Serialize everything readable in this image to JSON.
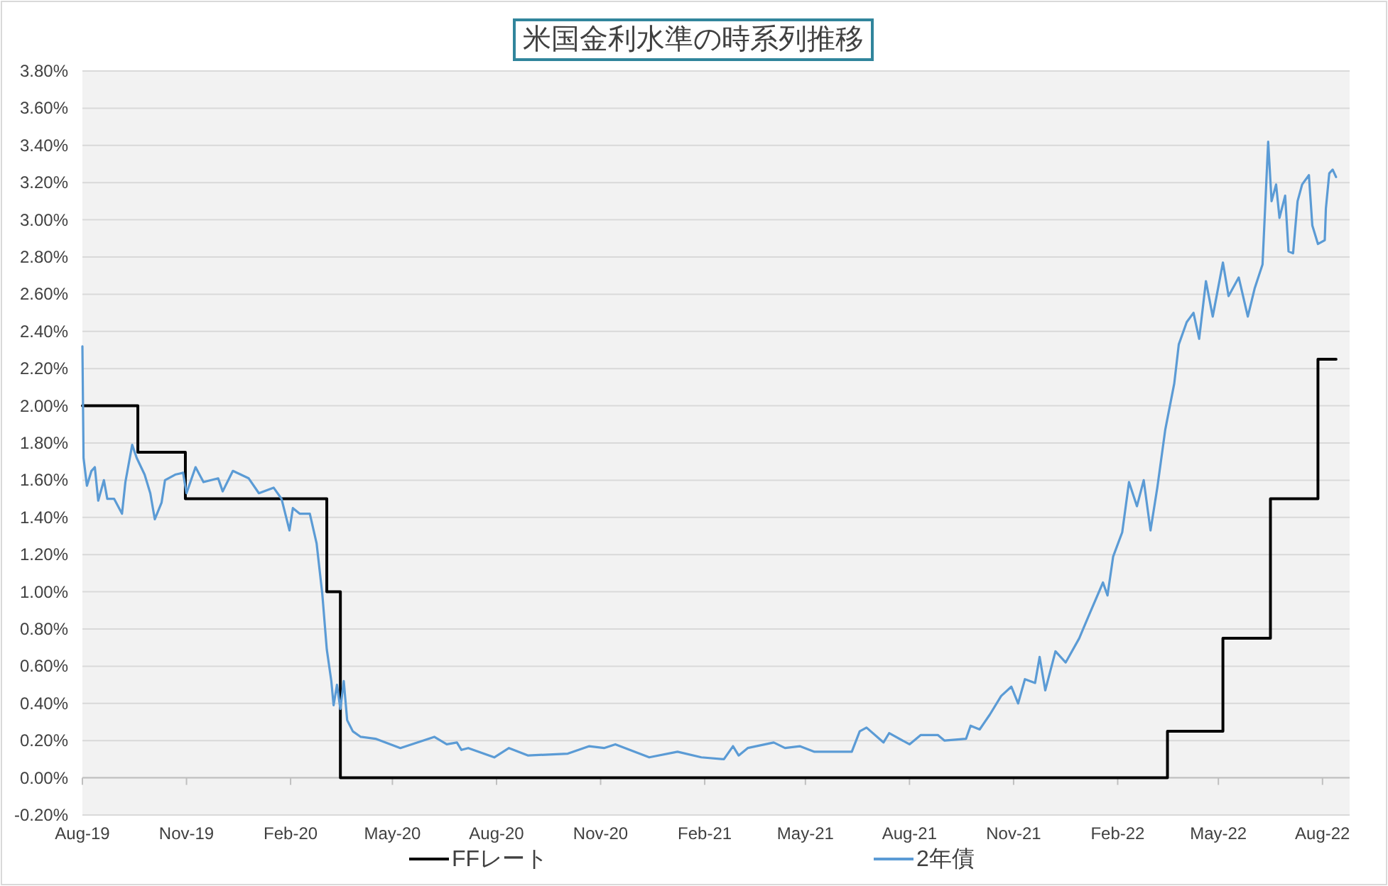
{
  "chart_data": {
    "type": "line",
    "title": "米国金利水準の時系列推移",
    "xlim": [
      "2019-08-01",
      "2022-08-25"
    ],
    "ylim": [
      -0.2,
      3.8
    ],
    "xticks": [
      {
        "value": "2019-08-01",
        "label": "Aug-19"
      },
      {
        "value": "2019-11-01",
        "label": "Nov-19"
      },
      {
        "value": "2020-02-01",
        "label": "Feb-20"
      },
      {
        "value": "2020-05-01",
        "label": "May-20"
      },
      {
        "value": "2020-08-01",
        "label": "Aug-20"
      },
      {
        "value": "2020-11-01",
        "label": "Nov-20"
      },
      {
        "value": "2021-02-01",
        "label": "Feb-21"
      },
      {
        "value": "2021-05-01",
        "label": "May-21"
      },
      {
        "value": "2021-08-01",
        "label": "Aug-21"
      },
      {
        "value": "2021-11-01",
        "label": "Nov-21"
      },
      {
        "value": "2022-02-01",
        "label": "Feb-22"
      },
      {
        "value": "2022-05-01",
        "label": "May-22"
      },
      {
        "value": "2022-08-01",
        "label": "Aug-22"
      }
    ],
    "yticks": [
      {
        "value": -0.2,
        "label": "-0.20%"
      },
      {
        "value": 0,
        "label": "0.00%"
      },
      {
        "value": 0.2,
        "label": "0.20%"
      },
      {
        "value": 0.4,
        "label": "0.40%"
      },
      {
        "value": 0.6,
        "label": "0.60%"
      },
      {
        "value": 0.8,
        "label": "0.80%"
      },
      {
        "value": 1.0,
        "label": "1.00%"
      },
      {
        "value": 1.2,
        "label": "1.20%"
      },
      {
        "value": 1.4,
        "label": "1.40%"
      },
      {
        "value": 1.6,
        "label": "1.60%"
      },
      {
        "value": 1.8,
        "label": "1.80%"
      },
      {
        "value": 2.0,
        "label": "2.00%"
      },
      {
        "value": 2.2,
        "label": "2.20%"
      },
      {
        "value": 2.4,
        "label": "2.40%"
      },
      {
        "value": 2.6,
        "label": "2.60%"
      },
      {
        "value": 2.8,
        "label": "2.80%"
      },
      {
        "value": 3.0,
        "label": "3.00%"
      },
      {
        "value": 3.2,
        "label": "3.20%"
      },
      {
        "value": 3.4,
        "label": "3.40%"
      },
      {
        "value": 3.6,
        "label": "3.60%"
      },
      {
        "value": 3.8,
        "label": "3.80%"
      }
    ],
    "grid": "y",
    "legend": "bottom",
    "series": [
      {
        "name": "FFレート",
        "type": "step",
        "color": "#000000",
        "x": [
          "2019-08-01",
          "2019-09-19",
          "2019-10-31",
          "2020-03-04",
          "2020-03-16",
          "2022-03-17",
          "2022-05-05",
          "2022-06-16",
          "2022-07-28",
          "2022-08-13"
        ],
        "values": [
          2.0,
          1.75,
          1.5,
          1.0,
          0.0,
          0.25,
          0.75,
          1.5,
          2.25,
          2.25
        ]
      },
      {
        "name": "2年債",
        "type": "line",
        "color": "#5b9bd5",
        "x": [
          "2019-08-01",
          "2019-08-02",
          "2019-08-05",
          "2019-08-09",
          "2019-08-12",
          "2019-08-15",
          "2019-08-20",
          "2019-08-23",
          "2019-08-29",
          "2019-09-05",
          "2019-09-08",
          "2019-09-14",
          "2019-09-18",
          "2019-09-25",
          "2019-09-30",
          "2019-10-04",
          "2019-10-10",
          "2019-10-13",
          "2019-10-22",
          "2019-10-29",
          "2019-11-01",
          "2019-11-09",
          "2019-11-16",
          "2019-11-29",
          "2019-12-03",
          "2019-12-12",
          "2019-12-26",
          "2020-01-04",
          "2020-01-17",
          "2020-01-24",
          "2020-01-31",
          "2020-02-03",
          "2020-02-09",
          "2020-02-18",
          "2020-02-24",
          "2020-02-29",
          "2020-03-04",
          "2020-03-08",
          "2020-03-10",
          "2020-03-13",
          "2020-03-16",
          "2020-03-19",
          "2020-03-22",
          "2020-03-27",
          "2020-04-03",
          "2020-04-16",
          "2020-05-08",
          "2020-06-07",
          "2020-06-18",
          "2020-06-27",
          "2020-07-01",
          "2020-07-07",
          "2020-07-30",
          "2020-08-12",
          "2020-08-29",
          "2020-10-03",
          "2020-10-22",
          "2020-11-04",
          "2020-11-14",
          "2020-12-14",
          "2021-01-08",
          "2021-01-29",
          "2021-02-18",
          "2021-02-26",
          "2021-03-03",
          "2021-03-11",
          "2021-04-03",
          "2021-04-13",
          "2021-04-26",
          "2021-05-09",
          "2021-06-11",
          "2021-06-18",
          "2021-06-24",
          "2021-07-09",
          "2021-07-14",
          "2021-08-01",
          "2021-08-11",
          "2021-08-26",
          "2021-09-01",
          "2021-09-20",
          "2021-09-24",
          "2021-10-02",
          "2021-10-11",
          "2021-10-21",
          "2021-10-30",
          "2021-11-05",
          "2021-11-11",
          "2021-11-20",
          "2021-11-24",
          "2021-11-29",
          "2021-12-08",
          "2021-12-17",
          "2021-12-29",
          "2022-01-07",
          "2022-01-19",
          "2022-01-23",
          "2022-01-28",
          "2022-02-05",
          "2022-02-11",
          "2022-02-18",
          "2022-02-24",
          "2022-03-02",
          "2022-03-08",
          "2022-03-15",
          "2022-03-23",
          "2022-03-27",
          "2022-04-03",
          "2022-04-09",
          "2022-04-14",
          "2022-04-20",
          "2022-04-26",
          "2022-05-05",
          "2022-05-10",
          "2022-05-19",
          "2022-05-27",
          "2022-06-02",
          "2022-06-09",
          "2022-06-14",
          "2022-06-17",
          "2022-06-21",
          "2022-06-24",
          "2022-06-29",
          "2022-07-02",
          "2022-07-06",
          "2022-07-10",
          "2022-07-14",
          "2022-07-20",
          "2022-07-23",
          "2022-07-28",
          "2022-08-03",
          "2022-08-04",
          "2022-08-07",
          "2022-08-10",
          "2022-08-13"
        ],
        "values": [
          2.32,
          1.72,
          1.57,
          1.65,
          1.67,
          1.49,
          1.6,
          1.5,
          1.5,
          1.42,
          1.59,
          1.79,
          1.72,
          1.63,
          1.53,
          1.39,
          1.48,
          1.6,
          1.63,
          1.64,
          1.53,
          1.67,
          1.59,
          1.61,
          1.54,
          1.65,
          1.61,
          1.53,
          1.56,
          1.5,
          1.33,
          1.45,
          1.42,
          1.42,
          1.26,
          0.99,
          0.69,
          0.52,
          0.39,
          0.5,
          0.37,
          0.52,
          0.31,
          0.25,
          0.22,
          0.21,
          0.16,
          0.22,
          0.18,
          0.19,
          0.15,
          0.16,
          0.11,
          0.16,
          0.12,
          0.13,
          0.17,
          0.16,
          0.18,
          0.11,
          0.14,
          0.11,
          0.1,
          0.17,
          0.12,
          0.16,
          0.19,
          0.16,
          0.17,
          0.14,
          0.14,
          0.25,
          0.27,
          0.19,
          0.24,
          0.18,
          0.23,
          0.23,
          0.2,
          0.21,
          0.28,
          0.26,
          0.34,
          0.44,
          0.49,
          0.4,
          0.53,
          0.51,
          0.65,
          0.47,
          0.68,
          0.62,
          0.75,
          0.88,
          1.05,
          0.98,
          1.19,
          1.32,
          1.59,
          1.46,
          1.6,
          1.33,
          1.56,
          1.87,
          2.12,
          2.33,
          2.45,
          2.5,
          2.36,
          2.67,
          2.48,
          2.77,
          2.59,
          2.69,
          2.48,
          2.63,
          2.76,
          3.42,
          3.1,
          3.19,
          3.01,
          3.13,
          2.83,
          2.82,
          3.1,
          3.19,
          3.24,
          2.97,
          2.87,
          2.89,
          3.06,
          3.25,
          3.27,
          3.23
        ]
      }
    ]
  }
}
